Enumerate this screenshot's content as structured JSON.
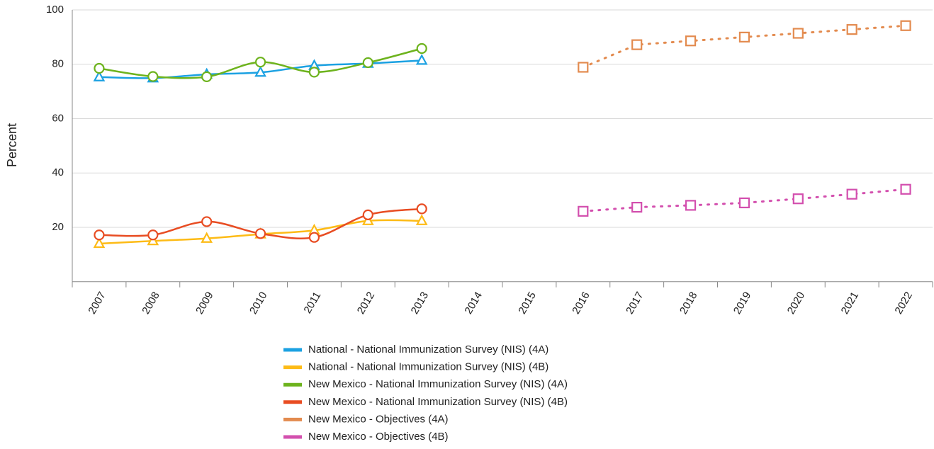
{
  "chart_data": {
    "type": "line",
    "y_label": "Percent",
    "categories": [
      "2007",
      "2008",
      "2009",
      "2010",
      "2011",
      "2012",
      "2013",
      "2014",
      "2015",
      "2016",
      "2017",
      "2018",
      "2019",
      "2020",
      "2021",
      "2022"
    ],
    "ylim": [
      0,
      100
    ],
    "yticks": [
      20,
      40,
      60,
      80,
      100
    ],
    "grid": true,
    "series": [
      {
        "name": "National - National Immunization Survey (NIS) (4A)",
        "color": "#1ba1e2",
        "marker": "triangle",
        "dash": "solid",
        "values": [
          75.3,
          74.9,
          76.3,
          77.0,
          79.5,
          80.3,
          81.4,
          null,
          null,
          null,
          null,
          null,
          null,
          null,
          null,
          null
        ]
      },
      {
        "name": "National - National Immunization Survey (NIS) (4B)",
        "color": "#fdbb16",
        "marker": "triangle",
        "dash": "solid",
        "values": [
          14.0,
          15.0,
          15.9,
          17.5,
          18.9,
          22.4,
          22.4,
          null,
          null,
          null,
          null,
          null,
          null,
          null,
          null,
          null
        ]
      },
      {
        "name": "New Mexico - National Immunization Survey (NIS) (4A)",
        "color": "#6db31d",
        "marker": "circle",
        "dash": "solid",
        "values": [
          78.5,
          75.5,
          75.4,
          80.8,
          77.1,
          80.6,
          85.8,
          null,
          null,
          null,
          null,
          null,
          null,
          null,
          null,
          null
        ]
      },
      {
        "name": "New Mexico - National Immunization Survey (NIS) (4B)",
        "color": "#e84c22",
        "marker": "circle",
        "dash": "solid",
        "values": [
          17.2,
          17.2,
          22.1,
          17.7,
          16.3,
          24.6,
          26.8,
          null,
          null,
          null,
          null,
          null,
          null,
          null,
          null,
          null
        ]
      },
      {
        "name": "New Mexico - Objectives (4A)",
        "color": "#e38b4f",
        "marker": "square",
        "dash": "dotted",
        "values": [
          null,
          null,
          null,
          null,
          null,
          null,
          null,
          null,
          null,
          78.9,
          87.2,
          88.6,
          90.0,
          91.4,
          92.8,
          94.2
        ]
      },
      {
        "name": "New Mexico - Objectives (4B)",
        "color": "#d34fae",
        "marker": "square",
        "dash": "dotted",
        "values": [
          null,
          null,
          null,
          null,
          null,
          null,
          null,
          null,
          null,
          25.9,
          27.4,
          28.1,
          29.0,
          30.5,
          32.2,
          34.0
        ]
      }
    ]
  }
}
